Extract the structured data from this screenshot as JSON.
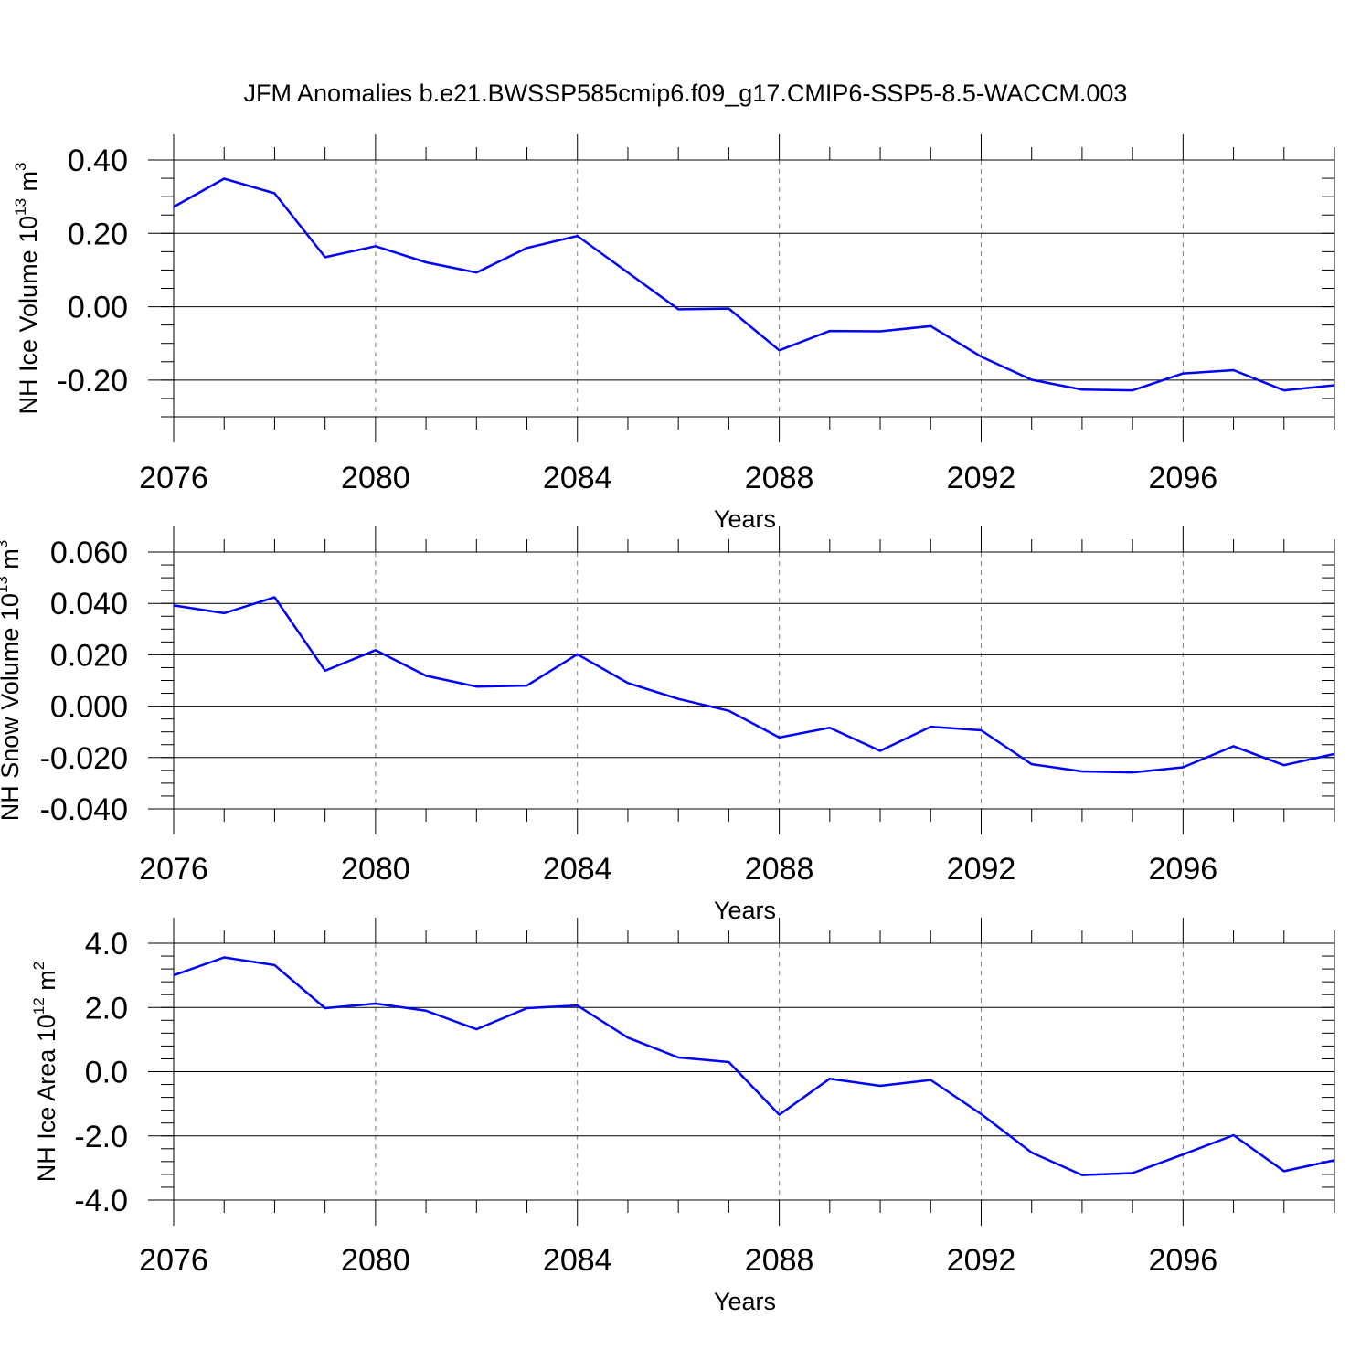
{
  "figure": {
    "title": "JFM Anomalies b.e21.BWSSP585cmip6.f09_g17.CMIP6-SSP5-8.5-WACCM.003"
  },
  "colors": {
    "series": "#0000ff",
    "axes": "#000000",
    "grid": "#808080"
  },
  "chart_data": [
    {
      "type": "line",
      "title": "",
      "xlabel": "Years",
      "ylabel": {
        "text": "NH Ice Volume 10",
        "sup": "13",
        "unit": " m",
        "unit_sup": "3"
      },
      "xlim": [
        2076,
        2099
      ],
      "ylim": [
        -0.3,
        0.4
      ],
      "x_ticks": [
        2076,
        2080,
        2084,
        2088,
        2092,
        2096
      ],
      "x_tick_labels": [
        "2076",
        "2080",
        "2084",
        "2088",
        "2092",
        "2096"
      ],
      "y_ticks": [
        0.4,
        0.2,
        0.0,
        -0.2
      ],
      "y_tick_labels": [
        "0.40",
        "0.20",
        "0.00",
        "-0.20"
      ],
      "y_minor_step": 0.05,
      "grid": "vertical dashed at major x ticks",
      "x": [
        2076,
        2077,
        2078,
        2079,
        2080,
        2081,
        2082,
        2083,
        2084,
        2085,
        2086,
        2087,
        2088,
        2089,
        2090,
        2091,
        2092,
        2093,
        2094,
        2095,
        2096,
        2097,
        2098,
        2099
      ],
      "series": [
        {
          "values": [
            0.272,
            0.349,
            0.309,
            0.135,
            0.165,
            0.121,
            0.093,
            0.16,
            0.193,
            0.093,
            -0.007,
            -0.005,
            -0.119,
            -0.066,
            -0.067,
            -0.053,
            -0.136,
            -0.199,
            -0.226,
            -0.228,
            -0.182,
            -0.173,
            -0.228,
            -0.214
          ]
        }
      ]
    },
    {
      "type": "line",
      "title": "",
      "xlabel": "Years",
      "ylabel": {
        "text": "NH Snow Volume 10",
        "sup": "13",
        "unit": " m",
        "unit_sup": "3"
      },
      "xlim": [
        2076,
        2099
      ],
      "ylim": [
        -0.04,
        0.06
      ],
      "x_ticks": [
        2076,
        2080,
        2084,
        2088,
        2092,
        2096
      ],
      "x_tick_labels": [
        "2076",
        "2080",
        "2084",
        "2088",
        "2092",
        "2096"
      ],
      "y_ticks": [
        0.06,
        0.04,
        0.02,
        0.0,
        -0.02,
        -0.04
      ],
      "y_tick_labels": [
        "0.060",
        "0.040",
        "0.020",
        "0.000",
        "-0.020",
        "-0.040"
      ],
      "y_minor_step": 0.005,
      "grid": "vertical dashed at major x ticks",
      "x": [
        2076,
        2077,
        2078,
        2079,
        2080,
        2081,
        2082,
        2083,
        2084,
        2085,
        2086,
        2087,
        2088,
        2089,
        2090,
        2091,
        2092,
        2093,
        2094,
        2095,
        2096,
        2097,
        2098,
        2099
      ],
      "series": [
        {
          "values": [
            0.0392,
            0.0362,
            0.0424,
            0.0138,
            0.0218,
            0.0118,
            0.0076,
            0.008,
            0.0202,
            0.009,
            0.0028,
            -0.0018,
            -0.0122,
            -0.0084,
            -0.0174,
            -0.008,
            -0.0094,
            -0.0226,
            -0.0254,
            -0.0258,
            -0.0238,
            -0.0156,
            -0.023,
            -0.0186
          ]
        }
      ]
    },
    {
      "type": "line",
      "title": "",
      "xlabel": "Years",
      "ylabel": {
        "text": "NH Ice Area 10",
        "sup": "12",
        "unit": " m",
        "unit_sup": "2"
      },
      "xlim": [
        2076,
        2099
      ],
      "ylim": [
        -4.0,
        4.0
      ],
      "x_ticks": [
        2076,
        2080,
        2084,
        2088,
        2092,
        2096
      ],
      "x_tick_labels": [
        "2076",
        "2080",
        "2084",
        "2088",
        "2092",
        "2096"
      ],
      "y_ticks": [
        4.0,
        2.0,
        0.0,
        -2.0,
        -4.0
      ],
      "y_tick_labels": [
        "4.0",
        "2.0",
        "0.0",
        "-2.0",
        "-4.0"
      ],
      "y_minor_step": 0.4,
      "grid": "vertical dashed at major x ticks",
      "x": [
        2076,
        2077,
        2078,
        2079,
        2080,
        2081,
        2082,
        2083,
        2084,
        2085,
        2086,
        2087,
        2088,
        2089,
        2090,
        2091,
        2092,
        2093,
        2094,
        2095,
        2096,
        2097,
        2098,
        2099
      ],
      "series": [
        {
          "values": [
            3.0,
            3.56,
            3.32,
            1.98,
            2.12,
            1.9,
            1.32,
            1.98,
            2.06,
            1.06,
            0.44,
            0.3,
            -1.34,
            -0.22,
            -0.44,
            -0.26,
            -1.32,
            -2.52,
            -3.22,
            -3.16,
            -2.58,
            -1.98,
            -3.1,
            -2.76
          ]
        }
      ]
    }
  ]
}
